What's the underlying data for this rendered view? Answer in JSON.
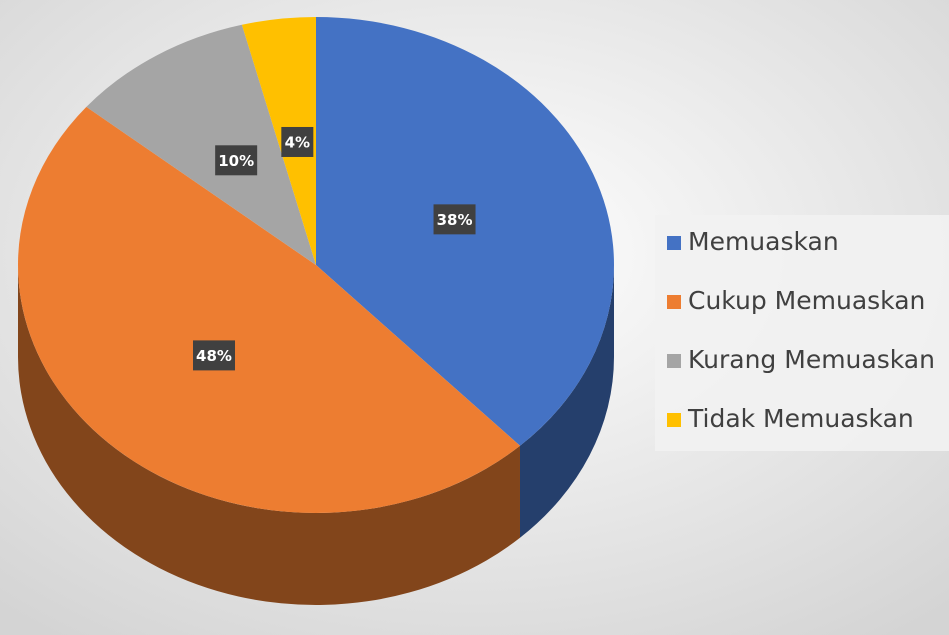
{
  "chart_data": {
    "type": "pie",
    "categories": [
      "Memuaskan",
      "Cukup Memuaskan",
      "Kurang Memuaskan",
      "Tidak Memuaskan"
    ],
    "values": [
      38,
      48,
      10,
      4
    ],
    "value_labels": [
      "38%",
      "48%",
      "10%",
      "4%"
    ],
    "colors": [
      "#4472c4",
      "#ed7d31",
      "#a5a5a5",
      "#ffc000"
    ],
    "legend": "right"
  }
}
